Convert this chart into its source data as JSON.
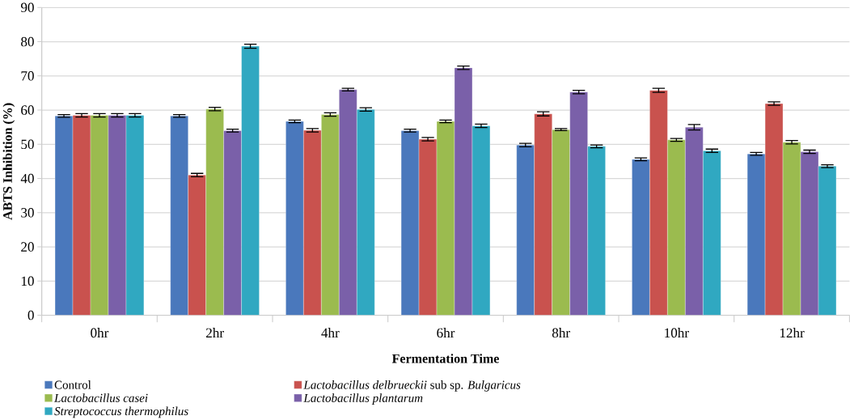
{
  "chart_data": {
    "type": "bar",
    "xlabel": "Fermentation Time",
    "ylabel": "ABTS Inhibition (%)",
    "categories": [
      "0hr",
      "2hr",
      "4hr",
      "6hr",
      "8hr",
      "10hr",
      "12hr"
    ],
    "series": [
      {
        "name": "Control",
        "color": "#4a78bc",
        "values": [
          58.3,
          58.3,
          56.7,
          54.0,
          49.8,
          45.6,
          47.2
        ],
        "errors": [
          0.4,
          0.4,
          0.4,
          0.4,
          0.5,
          0.4,
          0.4
        ]
      },
      {
        "name": "*Lactobacillus delbrueckii* sub sp. *Bulgaricus*",
        "color": "#c9524e",
        "values": [
          58.5,
          41.0,
          54.1,
          51.5,
          58.9,
          65.8,
          61.9
        ],
        "errors": [
          0.5,
          0.5,
          0.5,
          0.5,
          0.6,
          0.6,
          0.5
        ]
      },
      {
        "name": "*Lactobacillus casei*",
        "color": "#9bbb4f",
        "values": [
          58.5,
          60.3,
          58.7,
          56.7,
          54.3,
          51.3,
          50.6
        ],
        "errors": [
          0.5,
          0.5,
          0.5,
          0.4,
          0.3,
          0.4,
          0.5
        ]
      },
      {
        "name": "*Lactobacillus plantarum*",
        "color": "#7a60a9",
        "values": [
          58.5,
          54.0,
          66.0,
          72.4,
          65.3,
          55.0,
          47.8
        ],
        "errors": [
          0.5,
          0.4,
          0.4,
          0.5,
          0.5,
          0.8,
          0.5
        ]
      },
      {
        "name": "*Streptococcus thermophilus*",
        "color": "#30a8c1",
        "values": [
          58.5,
          78.7,
          60.2,
          55.4,
          49.4,
          48.1,
          43.6
        ],
        "errors": [
          0.5,
          0.6,
          0.5,
          0.5,
          0.4,
          0.5,
          0.4
        ]
      }
    ],
    "ylim": [
      0,
      90
    ],
    "yticks": [
      0,
      10,
      20,
      30,
      40,
      50,
      60,
      70,
      80,
      90
    ],
    "grid": "y",
    "legend": "bottom"
  }
}
